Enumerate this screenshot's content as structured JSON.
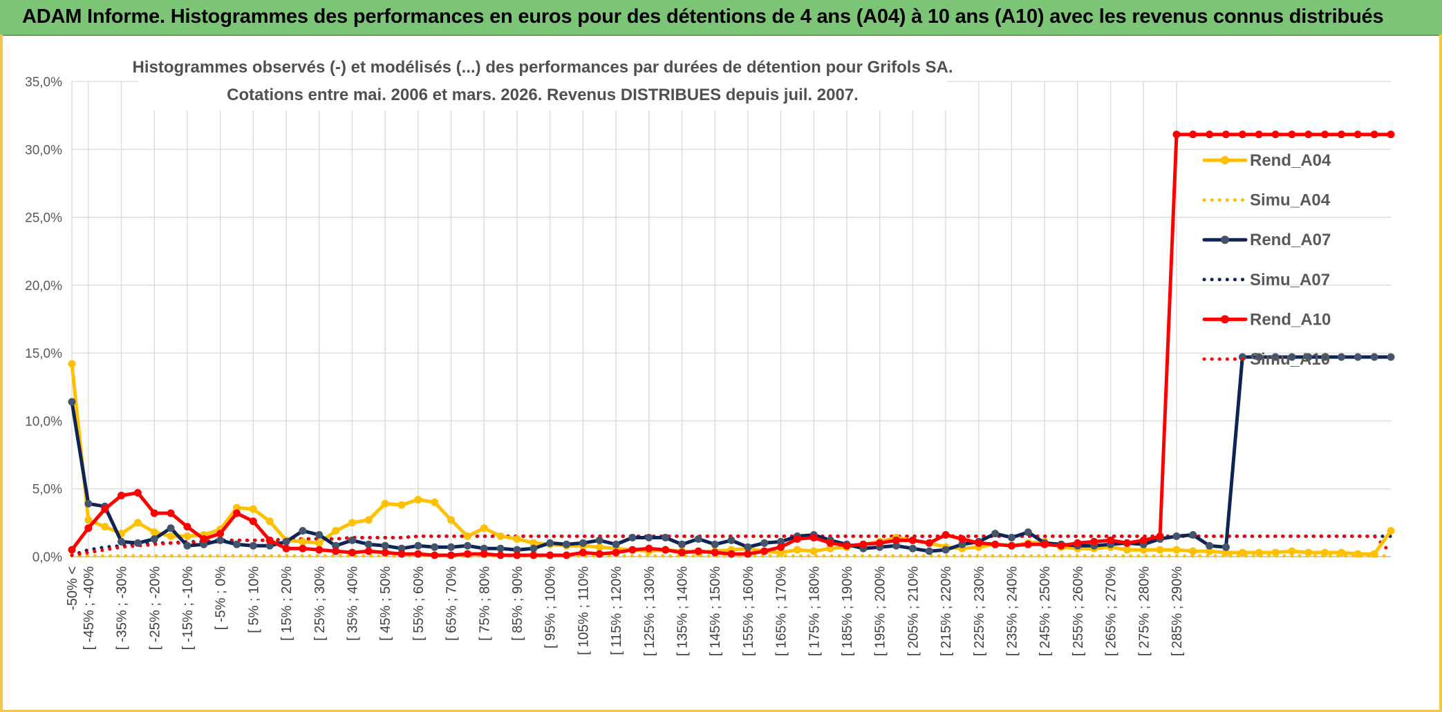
{
  "header": {
    "title": "ADAM Informe. Histogrammes des performances en euros pour des détentions de 4 ans (A04) à 10 ans (A10) avec les revenus connus distribués"
  },
  "chart_data": {
    "type": "line",
    "title": "Histogrammes observés (-) et modélisés (...) des performances par durées de détention pour Grifols SA.",
    "subtitle": "Cotations entre mai. 2006 et mars. 2026. Revenus DISTRIBUES depuis juil. 2007.",
    "xlabel": "",
    "ylabel": "",
    "ylim": [
      0,
      35
    ],
    "y_ticks": [
      "0,0%",
      "5,0%",
      "10,0%",
      "15,0%",
      "20,0%",
      "25,0%",
      "30,0%",
      "35,0%"
    ],
    "grid": true,
    "legend_position": "right",
    "x_tick_labels": [
      "-50% <",
      "[ -45% ; -40%",
      "[ -35% ; -30%",
      "[ -25% ; -20%",
      "[ -15% ; -10%",
      "[ -5% ; 0%",
      "[ 5% ; 10%",
      "[ 15% ; 20%",
      "[ 25% ; 30%",
      "[ 35% ; 40%",
      "[ 45% ; 50%",
      "[ 55% ; 60%",
      "[ 65% ; 70%",
      "[ 75% ; 80%",
      "[ 85% ; 90%",
      "[ 95% ; 100%",
      "[ 105% ; 110%",
      "[ 115% ; 120%",
      "[ 125% ; 130%",
      "[ 135% ; 140%",
      "[ 145% ; 150%",
      "[ 155% ; 160%",
      "[ 165% ; 170%",
      "[ 175% ; 180%",
      "[ 185% ; 190%",
      "[ 195% ; 200%",
      "[ 205% ; 210%",
      "[ 215% ; 220%",
      "[ 225% ; 230%",
      "[ 235% ; 240%",
      "[ 245% ; 250%",
      "[ 255% ; 260%",
      "[ 265% ; 270%",
      "[ 275% ; 280%",
      "[ 285% ; 290%"
    ],
    "series": [
      {
        "name": "Rend_A04",
        "color": "#FFC000",
        "style": "solid",
        "markers": true,
        "values": [
          14.2,
          2.7,
          2.2,
          1.7,
          2.5,
          1.8,
          1.5,
          1.5,
          1.6,
          2.0,
          3.6,
          3.5,
          2.6,
          1.2,
          1.1,
          1.0,
          1.9,
          2.5,
          2.7,
          3.9,
          3.8,
          4.2,
          4.0,
          2.7,
          1.5,
          2.1,
          1.5,
          1.3,
          1.0,
          0.9,
          0.8,
          0.8,
          0.7,
          0.6,
          0.5,
          0.4,
          0.5,
          0.4,
          0.3,
          0.4,
          0.5,
          0.6,
          0.4,
          0.3,
          0.5,
          0.4,
          0.6,
          0.7,
          0.9,
          1.1,
          1.4,
          1.2,
          1.0,
          0.7,
          0.6,
          0.7,
          0.9,
          0.8,
          1.0,
          1.1,
          0.7,
          0.6,
          0.6,
          0.7,
          0.5,
          0.5,
          0.5,
          0.5,
          0.4,
          0.4,
          0.3,
          0.3,
          0.3,
          0.3,
          0.4,
          0.3,
          0.3,
          0.3,
          0.2,
          0.2,
          1.9
        ]
      },
      {
        "name": "Simu_A04",
        "color": "#FFC000",
        "style": "dotted",
        "markers": false,
        "values": [
          0.05,
          0.05,
          0.05,
          0.05,
          0.05,
          0.05,
          0.05,
          0.05,
          0.05,
          0.05,
          0.05,
          0.05,
          0.05,
          0.05,
          0.05,
          0.05,
          0.05,
          0.05,
          0.05,
          0.05,
          0.05,
          0.05,
          0.05,
          0.05,
          0.05,
          0.05,
          0.05,
          0.05,
          0.05,
          0.05,
          0.05,
          0.05,
          0.05,
          0.05,
          0.05,
          0.05,
          0.05,
          0.05,
          0.05,
          0.05,
          0.05,
          0.05,
          0.05,
          0.05,
          0.05,
          0.05,
          0.05,
          0.05,
          0.05,
          0.05,
          0.05,
          0.05,
          0.05,
          0.05,
          0.05,
          0.05,
          0.05,
          0.05,
          0.05,
          0.05,
          0.05,
          0.05,
          0.05,
          0.05,
          0.05,
          0.05,
          0.05,
          0.05,
          0.05,
          0.05,
          0.05,
          0.05,
          0.05,
          0.05,
          0.05,
          0.05,
          0.05,
          0.05,
          0.05,
          0.05,
          0.05
        ]
      },
      {
        "name": "Rend_A07",
        "color": "#0E2356",
        "style": "solid",
        "markers": true,
        "values": [
          11.4,
          3.9,
          3.7,
          1.1,
          1.0,
          1.3,
          2.1,
          0.8,
          0.9,
          1.2,
          0.9,
          0.8,
          0.8,
          1.1,
          1.9,
          1.6,
          0.8,
          1.2,
          0.9,
          0.8,
          0.6,
          0.8,
          0.7,
          0.7,
          0.8,
          0.6,
          0.6,
          0.5,
          0.6,
          1.0,
          0.9,
          1.0,
          1.2,
          0.9,
          1.4,
          1.4,
          1.4,
          0.9,
          1.3,
          0.9,
          1.2,
          0.7,
          1.0,
          1.1,
          1.5,
          1.6,
          1.2,
          0.9,
          0.6,
          0.7,
          0.8,
          0.6,
          0.4,
          0.5,
          0.9,
          1.1,
          1.7,
          1.4,
          1.8,
          1.0,
          0.9,
          0.8,
          0.8,
          0.9,
          1.0,
          0.9,
          1.3,
          1.5,
          1.6,
          0.8,
          0.7,
          14.7,
          14.7,
          14.7,
          14.7,
          14.7,
          14.7,
          14.7,
          14.7,
          14.7,
          14.7
        ]
      },
      {
        "name": "Simu_A07",
        "color": "#0E2356",
        "style": "dotted",
        "markers": false,
        "values": [
          0.1,
          0.5,
          0.7,
          0.8,
          0.9,
          1.0,
          1.0,
          1.1,
          1.1,
          1.2,
          1.2,
          1.2,
          1.2,
          1.2,
          1.3,
          1.3,
          1.3,
          1.4,
          1.4,
          1.4,
          1.4,
          1.5,
          1.5,
          1.5,
          1.5,
          1.5,
          1.5,
          1.5,
          1.5,
          1.5,
          1.5,
          1.5,
          1.5,
          1.5,
          1.5,
          1.5,
          1.5,
          1.5,
          1.5,
          1.5,
          1.5,
          1.5,
          1.5,
          1.5,
          1.5,
          1.5,
          1.5,
          1.5,
          1.5,
          1.5,
          1.5,
          1.5,
          1.5,
          1.5,
          1.5,
          1.5,
          1.5,
          1.5,
          1.5,
          1.5,
          1.5,
          1.5,
          1.5,
          1.5,
          1.5,
          1.5,
          1.5,
          1.5,
          1.5,
          1.5,
          1.5,
          1.5,
          1.5,
          1.5,
          1.5,
          1.5,
          1.5,
          1.5,
          1.5,
          1.5,
          1.5
        ]
      },
      {
        "name": "Rend_A10",
        "color": "#FF0000",
        "style": "solid",
        "markers": true,
        "values": [
          0.5,
          2.1,
          3.5,
          4.5,
          4.7,
          3.2,
          3.2,
          2.2,
          1.3,
          1.7,
          3.2,
          2.6,
          1.2,
          0.6,
          0.6,
          0.5,
          0.4,
          0.3,
          0.4,
          0.3,
          0.2,
          0.2,
          0.1,
          0.1,
          0.2,
          0.2,
          0.1,
          0.1,
          0.1,
          0.1,
          0.1,
          0.3,
          0.2,
          0.3,
          0.5,
          0.6,
          0.5,
          0.3,
          0.4,
          0.3,
          0.2,
          0.2,
          0.4,
          0.7,
          1.3,
          1.4,
          1.0,
          0.8,
          0.9,
          1.0,
          1.2,
          1.2,
          1.0,
          1.6,
          1.3,
          1.0,
          0.9,
          0.8,
          0.9,
          0.9,
          0.8,
          1.0,
          1.1,
          1.2,
          1.0,
          1.2,
          1.5,
          31.1,
          31.1,
          31.1,
          31.1,
          31.1,
          31.1,
          31.1,
          31.1,
          31.1,
          31.1,
          31.1,
          31.1,
          31.1,
          31.1
        ]
      },
      {
        "name": "Simu_A10",
        "color": "#FF0000",
        "style": "dotted",
        "markers": false,
        "values": [
          0.1,
          0.3,
          0.5,
          0.7,
          0.8,
          0.9,
          1.0,
          1.0,
          1.1,
          1.1,
          1.2,
          1.2,
          1.2,
          1.3,
          1.3,
          1.3,
          1.3,
          1.4,
          1.4,
          1.4,
          1.4,
          1.5,
          1.5,
          1.5,
          1.5,
          1.5,
          1.5,
          1.5,
          1.5,
          1.5,
          1.5,
          1.5,
          1.5,
          1.5,
          1.5,
          1.5,
          1.5,
          1.5,
          1.5,
          1.5,
          1.5,
          1.5,
          1.5,
          1.5,
          1.5,
          1.5,
          1.5,
          1.5,
          1.5,
          1.5,
          1.5,
          1.5,
          1.5,
          1.5,
          1.5,
          1.5,
          1.5,
          1.5,
          1.5,
          1.5,
          1.5,
          1.5,
          1.5,
          1.5,
          1.5,
          1.5,
          1.5,
          1.5,
          1.5,
          1.5,
          1.5,
          1.5,
          1.5,
          1.5,
          1.5,
          1.5,
          1.5,
          1.5,
          1.5,
          1.5,
          0.3
        ]
      }
    ]
  }
}
